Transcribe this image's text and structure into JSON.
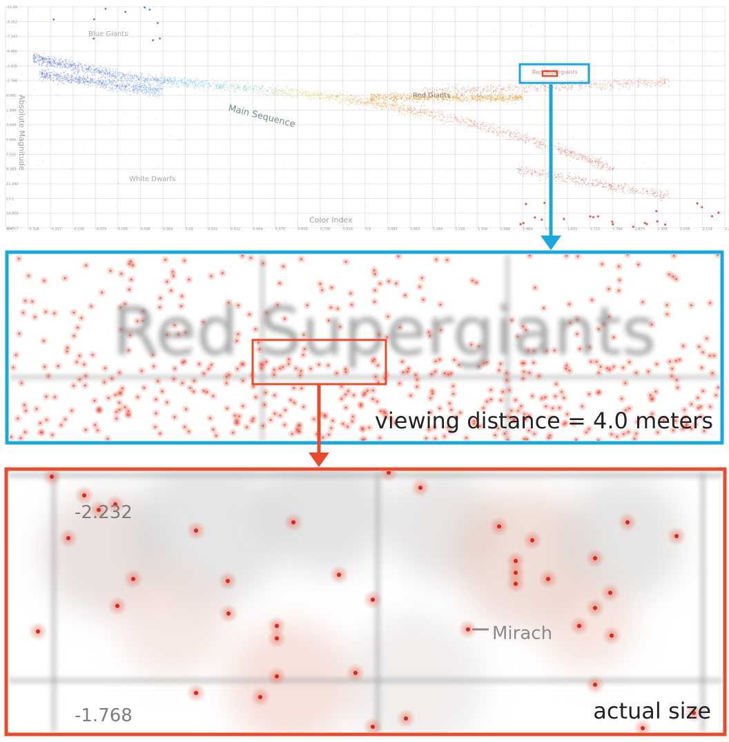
{
  "overview": {
    "region_labels": {
      "blue_giants": "Blue Giants",
      "main_sequence": "Main Sequence",
      "red_giants": "Red Giants",
      "red_supergiants": "Red Supergiants",
      "white_dwarfs": "White Dwarfs"
    },
    "xlabel": "Color Index",
    "ylabel": "Absolute Magnitude",
    "x_ticks": [
      "-0.4",
      "-0.318",
      "-0.217",
      "-0.236",
      "-0.075",
      "0.006",
      "0.088",
      "0.169",
      "0.25",
      "0.331",
      "0.412",
      "0.494",
      "0.575",
      "0.656",
      "0.738",
      "0.819",
      "0.9",
      "0.981",
      "1.063",
      "1.144",
      "1.225",
      "1.306",
      "1.388",
      "1.469",
      "1.55",
      "1.631",
      "1.713",
      "1.794",
      "1.875",
      "1.956",
      "2.038",
      "2.119",
      "2.2"
    ],
    "y_ticks": [
      "-11.06",
      "-9.262",
      "-7.343",
      "-5.465",
      "-3.626",
      "-1.768",
      "0.091",
      "1.949",
      "3.808",
      "5.666",
      "7.525",
      "9.383",
      "11.242",
      "13.1",
      "14.959",
      "16.817"
    ]
  },
  "chart_data": {
    "type": "scatter",
    "xlabel": "Color Index",
    "ylabel": "Absolute Magnitude",
    "xlim": [
      -0.4,
      2.2
    ],
    "ylim": [
      -11.06,
      16.817
    ],
    "y_inverted": true,
    "grid": true,
    "annotations": [
      "Blue Giants",
      "Main Sequence",
      "Red Giants",
      "Red Supergiants",
      "White Dwarfs"
    ],
    "regions": [
      {
        "name": "Main Sequence",
        "x_range": [
          -0.3,
          1.9
        ],
        "y_range": [
          -3.5,
          12.0
        ],
        "color": "#4a6fd0"
      },
      {
        "name": "Red Giants",
        "x_range": [
          0.9,
          1.45
        ],
        "y_range": [
          -0.5,
          1.5
        ],
        "color": "#e0962a"
      },
      {
        "name": "Red Supergiants",
        "x_range": [
          1.4,
          2.0
        ],
        "y_range": [
          -2.3,
          -1.0
        ],
        "color": "#e06a4a"
      },
      {
        "name": "White Dwarfs",
        "x_range": [
          1.2,
          2.2
        ],
        "y_range": [
          12.0,
          16.8
        ],
        "color": "#e03a3a"
      }
    ]
  },
  "zoom_medium": {
    "region_label": "Red Supergiants",
    "caption": "viewing distance = 4.0 meters",
    "border_color": "#1aa7e0"
  },
  "zoom_actual": {
    "tick_top": "-2.232",
    "tick_bottom": "-1.768",
    "star_label": "Mirach",
    "caption": "actual size",
    "border_color": "#e84a2a"
  }
}
